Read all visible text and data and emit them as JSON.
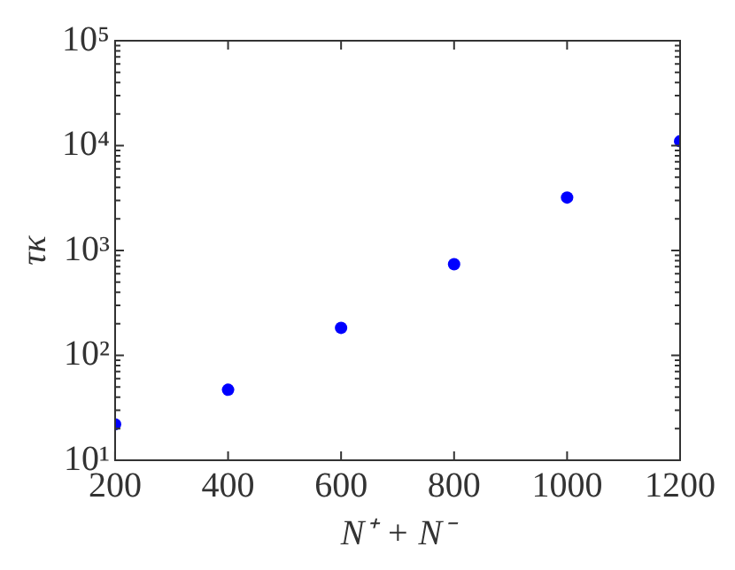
{
  "chart_data": {
    "type": "scatter",
    "xlabel": "N⁺ + N⁻",
    "ylabel": "τκ",
    "x": [
      200,
      400,
      600,
      800,
      1000,
      1200
    ],
    "series": [
      {
        "color": "#0000ff",
        "values": [
          22,
          47,
          183,
          740,
          3200,
          11000
        ]
      }
    ],
    "xlim": [
      200,
      1200
    ],
    "xticks": [
      200,
      400,
      600,
      800,
      1000,
      1200
    ],
    "ylim": [
      10,
      100000
    ],
    "yticks": [
      {
        "value": 10,
        "label": "10¹"
      },
      {
        "value": 100,
        "label": "10²"
      },
      {
        "value": 1000,
        "label": "10³"
      },
      {
        "value": 10000,
        "label": "10⁴"
      },
      {
        "value": 100000,
        "label": "10⁵"
      }
    ],
    "log": "y",
    "grid": false,
    "legend": false,
    "marker": "circle"
  }
}
